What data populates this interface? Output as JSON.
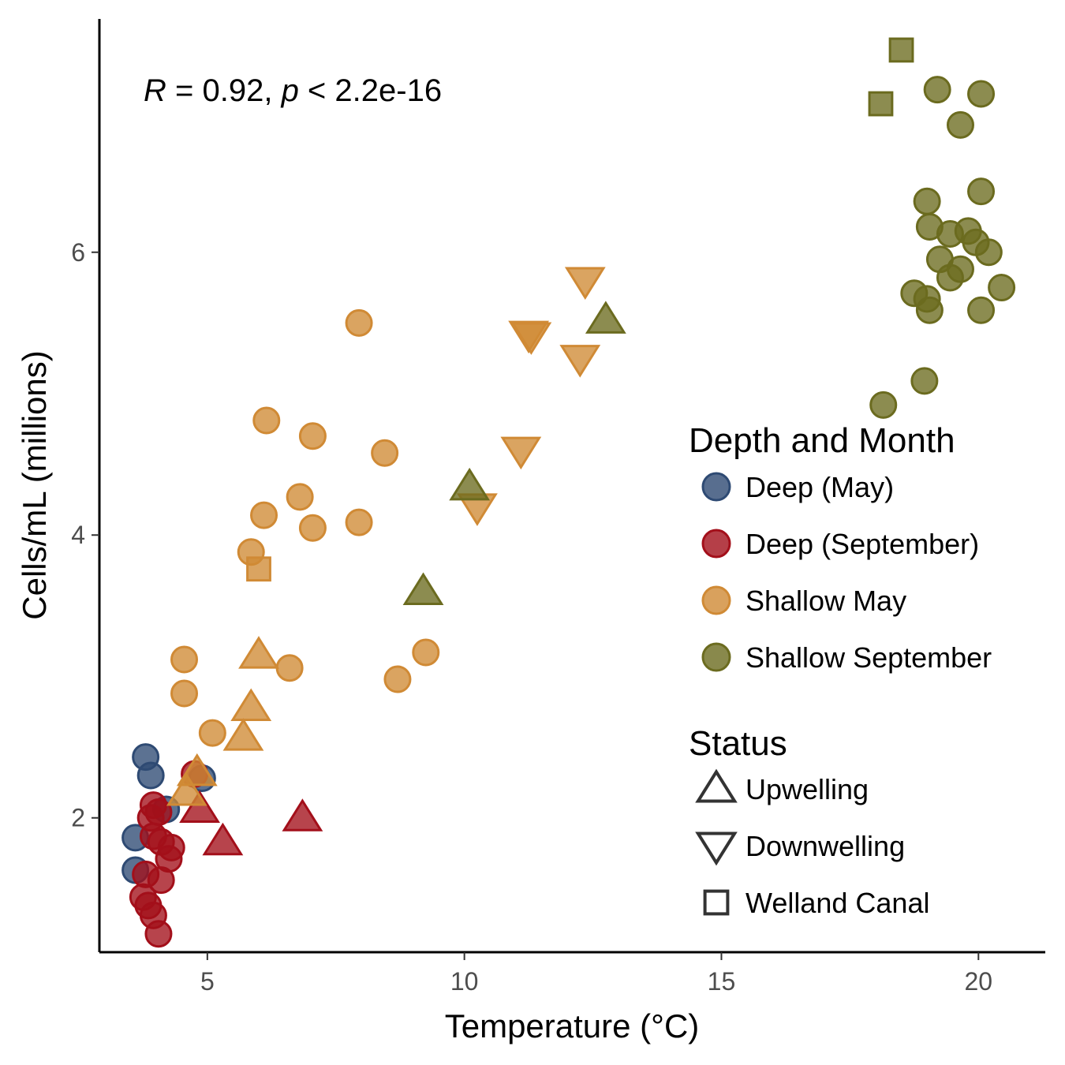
{
  "chart_data": {
    "type": "scatter",
    "xlabel": "Temperature (°C)",
    "ylabel": "Cells/mL (millions)",
    "xlim": [
      2.9,
      21.3
    ],
    "ylim": [
      1.05,
      7.65
    ],
    "xticks": [
      5,
      10,
      15,
      20
    ],
    "yticks": [
      2,
      4,
      6
    ],
    "grid": false,
    "annotation": {
      "r_symbol": "R",
      "r_text": " = 0.92, ",
      "p_symbol": "p",
      "p_text": " < 2.2e-16"
    },
    "legend_color": {
      "title": "Depth and Month",
      "placement": "right",
      "entries": [
        {
          "label": "Deep (May)",
          "color": "#2e4a73"
        },
        {
          "label": "Deep (September)",
          "color": "#a30f1a"
        },
        {
          "label": "Shallow May",
          "color": "#d08a35"
        },
        {
          "label": "Shallow September",
          "color": "#6b6b1f"
        }
      ]
    },
    "legend_shape": {
      "title": "Status",
      "entries": [
        {
          "label": "Upwelling",
          "shape": "triangle-up"
        },
        {
          "label": "Downwelling",
          "shape": "triangle-down"
        },
        {
          "label": "Welland Canal",
          "shape": "square"
        }
      ]
    },
    "series": [
      {
        "group": "Deep (May)",
        "color": "#2e4a73",
        "points": [
          {
            "x": 3.8,
            "y": 2.43,
            "shape": "circle"
          },
          {
            "x": 3.9,
            "y": 2.3,
            "shape": "circle"
          },
          {
            "x": 4.9,
            "y": 2.28,
            "shape": "circle"
          },
          {
            "x": 4.2,
            "y": 2.06,
            "shape": "circle"
          },
          {
            "x": 3.6,
            "y": 1.86,
            "shape": "circle"
          },
          {
            "x": 3.6,
            "y": 1.63,
            "shape": "circle"
          }
        ]
      },
      {
        "group": "Deep (September)",
        "color": "#a30f1a",
        "points": [
          {
            "x": 4.75,
            "y": 2.31,
            "shape": "circle"
          },
          {
            "x": 3.95,
            "y": 2.09,
            "shape": "circle"
          },
          {
            "x": 4.05,
            "y": 2.04,
            "shape": "circle"
          },
          {
            "x": 3.9,
            "y": 2.0,
            "shape": "circle"
          },
          {
            "x": 3.95,
            "y": 1.87,
            "shape": "circle"
          },
          {
            "x": 4.1,
            "y": 1.83,
            "shape": "circle"
          },
          {
            "x": 4.3,
            "y": 1.79,
            "shape": "circle"
          },
          {
            "x": 4.25,
            "y": 1.71,
            "shape": "circle"
          },
          {
            "x": 3.8,
            "y": 1.6,
            "shape": "circle"
          },
          {
            "x": 4.1,
            "y": 1.56,
            "shape": "circle"
          },
          {
            "x": 3.75,
            "y": 1.44,
            "shape": "circle"
          },
          {
            "x": 3.85,
            "y": 1.38,
            "shape": "circle"
          },
          {
            "x": 3.95,
            "y": 1.31,
            "shape": "circle"
          },
          {
            "x": 4.05,
            "y": 1.18,
            "shape": "circle"
          },
          {
            "x": 4.85,
            "y": 2.06,
            "shape": "triangle-up"
          },
          {
            "x": 5.3,
            "y": 1.83,
            "shape": "triangle-up"
          },
          {
            "x": 6.85,
            "y": 2.0,
            "shape": "triangle-up"
          }
        ]
      },
      {
        "group": "Shallow May",
        "color": "#d08a35",
        "points": [
          {
            "x": 7.95,
            "y": 5.5,
            "shape": "circle"
          },
          {
            "x": 6.15,
            "y": 4.81,
            "shape": "circle"
          },
          {
            "x": 7.05,
            "y": 4.7,
            "shape": "circle"
          },
          {
            "x": 8.45,
            "y": 4.58,
            "shape": "circle"
          },
          {
            "x": 6.8,
            "y": 4.27,
            "shape": "circle"
          },
          {
            "x": 6.1,
            "y": 4.14,
            "shape": "circle"
          },
          {
            "x": 7.95,
            "y": 4.09,
            "shape": "circle"
          },
          {
            "x": 7.05,
            "y": 4.05,
            "shape": "circle"
          },
          {
            "x": 5.85,
            "y": 3.88,
            "shape": "circle"
          },
          {
            "x": 9.25,
            "y": 3.17,
            "shape": "circle"
          },
          {
            "x": 4.55,
            "y": 3.12,
            "shape": "circle"
          },
          {
            "x": 6.6,
            "y": 3.06,
            "shape": "circle"
          },
          {
            "x": 8.7,
            "y": 2.98,
            "shape": "circle"
          },
          {
            "x": 4.55,
            "y": 2.88,
            "shape": "circle"
          },
          {
            "x": 5.1,
            "y": 2.6,
            "shape": "circle"
          },
          {
            "x": 6.0,
            "y": 3.76,
            "shape": "square"
          },
          {
            "x": 6.0,
            "y": 3.15,
            "shape": "triangle-up"
          },
          {
            "x": 5.85,
            "y": 2.78,
            "shape": "triangle-up"
          },
          {
            "x": 5.7,
            "y": 2.57,
            "shape": "triangle-up"
          },
          {
            "x": 4.8,
            "y": 2.32,
            "shape": "triangle-up"
          },
          {
            "x": 4.6,
            "y": 2.18,
            "shape": "triangle-up"
          },
          {
            "x": 12.35,
            "y": 5.8,
            "shape": "triangle-down"
          },
          {
            "x": 11.25,
            "y": 5.42,
            "shape": "triangle-down"
          },
          {
            "x": 11.3,
            "y": 5.41,
            "shape": "triangle-down"
          },
          {
            "x": 12.25,
            "y": 5.25,
            "shape": "triangle-down"
          },
          {
            "x": 11.1,
            "y": 4.6,
            "shape": "triangle-down"
          },
          {
            "x": 10.25,
            "y": 4.2,
            "shape": "triangle-down"
          }
        ]
      },
      {
        "group": "Shallow September",
        "color": "#6b6b1f",
        "points": [
          {
            "x": 19.2,
            "y": 7.15,
            "shape": "circle"
          },
          {
            "x": 20.05,
            "y": 7.12,
            "shape": "circle"
          },
          {
            "x": 19.65,
            "y": 6.9,
            "shape": "circle"
          },
          {
            "x": 20.05,
            "y": 6.43,
            "shape": "circle"
          },
          {
            "x": 19.0,
            "y": 6.36,
            "shape": "circle"
          },
          {
            "x": 19.05,
            "y": 6.18,
            "shape": "circle"
          },
          {
            "x": 19.45,
            "y": 6.13,
            "shape": "circle"
          },
          {
            "x": 19.8,
            "y": 6.15,
            "shape": "circle"
          },
          {
            "x": 19.95,
            "y": 6.07,
            "shape": "circle"
          },
          {
            "x": 20.2,
            "y": 6.0,
            "shape": "circle"
          },
          {
            "x": 19.25,
            "y": 5.95,
            "shape": "circle"
          },
          {
            "x": 19.65,
            "y": 5.88,
            "shape": "circle"
          },
          {
            "x": 19.45,
            "y": 5.82,
            "shape": "circle"
          },
          {
            "x": 20.45,
            "y": 5.75,
            "shape": "circle"
          },
          {
            "x": 18.75,
            "y": 5.71,
            "shape": "circle"
          },
          {
            "x": 19.0,
            "y": 5.67,
            "shape": "circle"
          },
          {
            "x": 19.05,
            "y": 5.59,
            "shape": "circle"
          },
          {
            "x": 20.05,
            "y": 5.59,
            "shape": "circle"
          },
          {
            "x": 18.95,
            "y": 5.09,
            "shape": "circle"
          },
          {
            "x": 18.15,
            "y": 4.92,
            "shape": "circle"
          },
          {
            "x": 18.5,
            "y": 7.43,
            "shape": "square"
          },
          {
            "x": 18.1,
            "y": 7.05,
            "shape": "square"
          },
          {
            "x": 12.75,
            "y": 5.52,
            "shape": "triangle-up"
          },
          {
            "x": 10.1,
            "y": 4.34,
            "shape": "triangle-up"
          },
          {
            "x": 9.2,
            "y": 3.6,
            "shape": "triangle-up"
          }
        ]
      }
    ]
  }
}
